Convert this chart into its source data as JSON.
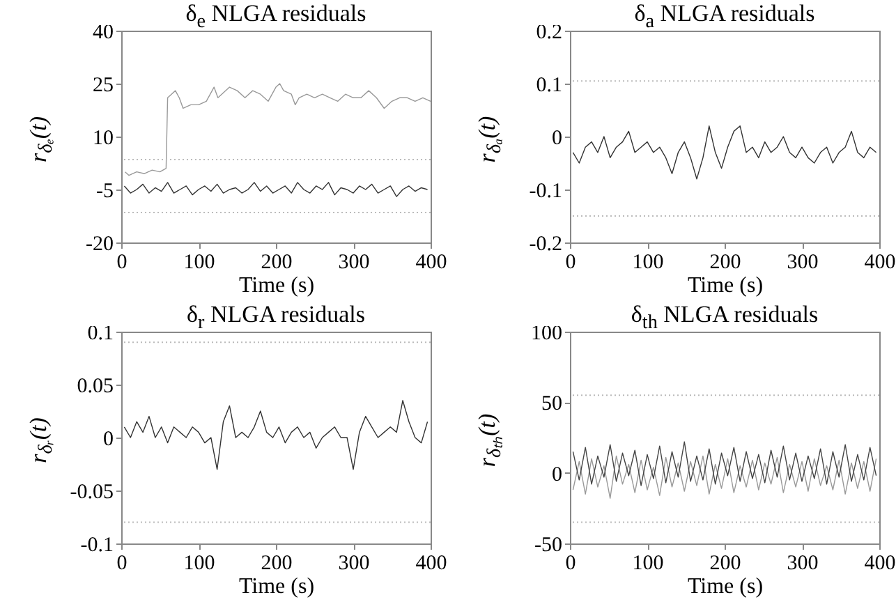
{
  "chart_data": [
    {
      "type": "line",
      "title": "δ$_{e}$  NLGA residuals",
      "xlabel": "Time (s)",
      "ylabel": "r$_{δₑ}$(t)",
      "xlim": [
        0,
        400
      ],
      "xticks": [
        0,
        100,
        200,
        300,
        400
      ],
      "ylim": [
        -20,
        40
      ],
      "yticks": [
        -20,
        -5,
        10,
        25,
        40
      ],
      "grid": false,
      "series": [
        {
          "color": "#999999",
          "x": [
            5,
            10,
            20,
            30,
            40,
            50,
            58,
            60,
            65,
            70,
            75,
            80,
            90,
            100,
            110,
            120,
            125,
            130,
            140,
            150,
            160,
            170,
            180,
            190,
            200,
            205,
            210,
            220,
            225,
            230,
            240,
            250,
            260,
            270,
            280,
            290,
            300,
            310,
            320,
            330,
            340,
            350,
            360,
            370,
            380,
            390,
            400
          ],
          "values": [
            0,
            -1,
            0,
            -0.5,
            0.5,
            0,
            1,
            21,
            22,
            23,
            21,
            18,
            19,
            19,
            20,
            24,
            21,
            22,
            24,
            23,
            21,
            23,
            22,
            20,
            24,
            25,
            23,
            22,
            19,
            21,
            22,
            21,
            22,
            21,
            20,
            22,
            21,
            21,
            23,
            21,
            18,
            20,
            21,
            21,
            20,
            21,
            20
          ]
        },
        {
          "color": "#333333",
          "x": [
            4,
            12,
            20,
            28,
            36,
            44,
            52,
            60,
            68,
            76,
            84,
            92,
            100,
            108,
            116,
            124,
            132,
            140,
            148,
            156,
            164,
            172,
            180,
            188,
            196,
            204,
            212,
            220,
            228,
            236,
            244,
            252,
            260,
            268,
            276,
            284,
            292,
            300,
            308,
            316,
            324,
            332,
            340,
            348,
            356,
            364,
            372,
            380,
            388,
            396
          ],
          "values": [
            -4,
            -6,
            -5,
            -3.5,
            -6,
            -4.5,
            -5.5,
            -3,
            -6,
            -5,
            -4,
            -6.5,
            -5,
            -4,
            -5.5,
            -3.5,
            -6,
            -5,
            -4.5,
            -6,
            -5,
            -3,
            -5.5,
            -4,
            -6,
            -5,
            -4,
            -6,
            -3,
            -5,
            -6,
            -4,
            -5,
            -3,
            -6.5,
            -4.5,
            -5,
            -6,
            -4,
            -5,
            -3.5,
            -6,
            -5,
            -4,
            -7,
            -5,
            -4,
            -5.5,
            -4.5,
            -5
          ]
        }
      ],
      "ref_lines": [
        {
          "axis": "y",
          "value": 3.5,
          "color": "#bbbbbb",
          "line_style": "dotted"
        },
        {
          "axis": "y",
          "value": -11.5,
          "color": "#bbbbbb",
          "line_style": "dotted"
        }
      ]
    },
    {
      "type": "line",
      "title": "δ$_{a}$  NLGA residuals",
      "xlabel": "Time (s)",
      "ylabel": "r$_{δₐ}$(t)",
      "xlim": [
        0,
        400
      ],
      "xticks": [
        0,
        100,
        200,
        300,
        400
      ],
      "ylim": [
        -0.2,
        0.2
      ],
      "yticks": [
        -0.2,
        -0.1,
        0,
        0.1,
        0.2
      ],
      "grid": false,
      "series": [
        {
          "color": "#333333",
          "x": [
            4,
            12,
            20,
            28,
            36,
            44,
            52,
            60,
            68,
            76,
            84,
            92,
            100,
            108,
            116,
            124,
            132,
            140,
            148,
            156,
            164,
            172,
            180,
            188,
            196,
            204,
            212,
            220,
            228,
            236,
            244,
            252,
            260,
            268,
            276,
            284,
            292,
            300,
            308,
            316,
            324,
            332,
            340,
            348,
            356,
            364,
            372,
            380,
            388,
            396
          ],
          "values": [
            -0.03,
            -0.05,
            -0.02,
            -0.01,
            -0.03,
            0.0,
            -0.04,
            -0.02,
            -0.01,
            0.01,
            -0.03,
            -0.02,
            -0.01,
            -0.03,
            -0.02,
            -0.04,
            -0.07,
            -0.03,
            -0.01,
            -0.04,
            -0.08,
            -0.04,
            0.02,
            -0.03,
            -0.06,
            -0.02,
            0.01,
            0.02,
            -0.03,
            -0.02,
            -0.04,
            -0.01,
            -0.03,
            -0.02,
            0.0,
            -0.03,
            -0.04,
            -0.02,
            -0.04,
            -0.05,
            -0.03,
            -0.02,
            -0.05,
            -0.03,
            -0.02,
            0.01,
            -0.03,
            -0.04,
            -0.02,
            -0.03
          ]
        }
      ],
      "ref_lines": [
        {
          "axis": "y",
          "value": 0.105,
          "color": "#bbbbbb",
          "line_style": "dotted"
        },
        {
          "axis": "y",
          "value": -0.15,
          "color": "#bbbbbb",
          "line_style": "dotted"
        }
      ]
    },
    {
      "type": "line",
      "title": "δ$_{r}$ NLGA residuals",
      "xlabel": "Time (s)",
      "ylabel": "r$_{δᵣ}$(t)",
      "xlim": [
        0,
        400
      ],
      "xticks": [
        0,
        100,
        200,
        300,
        400
      ],
      "ylim": [
        -0.1,
        0.1
      ],
      "yticks": [
        -0.1,
        -0.05,
        0,
        0.05,
        0.1
      ],
      "grid": false,
      "series": [
        {
          "color": "#333333",
          "x": [
            4,
            12,
            20,
            28,
            36,
            44,
            52,
            60,
            68,
            76,
            84,
            92,
            100,
            108,
            116,
            124,
            132,
            140,
            148,
            156,
            164,
            172,
            180,
            188,
            196,
            204,
            212,
            220,
            228,
            236,
            244,
            252,
            260,
            268,
            276,
            284,
            292,
            300,
            308,
            316,
            324,
            332,
            340,
            348,
            356,
            364,
            372,
            380,
            388,
            396
          ],
          "values": [
            0.01,
            0.0,
            0.015,
            0.005,
            0.02,
            0.0,
            0.01,
            -0.005,
            0.01,
            0.005,
            0.0,
            0.01,
            0.005,
            -0.005,
            0.0,
            -0.03,
            0.015,
            0.03,
            0.0,
            0.005,
            0.0,
            0.01,
            0.025,
            0.005,
            0.0,
            0.01,
            -0.005,
            0.005,
            0.01,
            0.0,
            0.005,
            -0.01,
            0.0,
            0.005,
            0.01,
            0.0,
            0.0,
            -0.03,
            0.005,
            0.02,
            0.01,
            0.0,
            0.005,
            0.01,
            0.005,
            0.035,
            0.015,
            0.0,
            -0.005,
            0.015
          ]
        }
      ],
      "ref_lines": [
        {
          "axis": "y",
          "value": 0.09,
          "color": "#bbbbbb",
          "line_style": "dotted"
        },
        {
          "axis": "y",
          "value": -0.08,
          "color": "#bbbbbb",
          "line_style": "dotted"
        }
      ]
    },
    {
      "type": "line",
      "title": "δ$_{th}$ NLGA residuals",
      "xlabel": "Time (s)",
      "ylabel": "r$_{δₜₕ}$(t)",
      "xlim": [
        0,
        400
      ],
      "xticks": [
        0,
        100,
        200,
        300,
        400
      ],
      "ylim": [
        -50,
        100
      ],
      "yticks": [
        -50,
        0,
        50,
        100
      ],
      "grid": false,
      "series": [
        {
          "color": "#999999",
          "x": [
            4,
            12,
            20,
            28,
            36,
            44,
            52,
            60,
            68,
            76,
            84,
            92,
            100,
            108,
            116,
            124,
            132,
            140,
            148,
            156,
            164,
            172,
            180,
            188,
            196,
            204,
            212,
            220,
            228,
            236,
            244,
            252,
            260,
            268,
            276,
            284,
            292,
            300,
            308,
            316,
            324,
            332,
            340,
            348,
            356,
            364,
            372,
            380,
            388,
            396
          ],
          "values": [
            -12,
            8,
            -15,
            10,
            -10,
            5,
            -18,
            12,
            -8,
            6,
            -14,
            9,
            -12,
            4,
            -16,
            11,
            -10,
            7,
            -13,
            8,
            -9,
            12,
            -15,
            6,
            -11,
            10,
            -14,
            5,
            -10,
            9,
            -12,
            7,
            -8,
            11,
            -14,
            6,
            -10,
            8,
            -13,
            10,
            -9,
            5,
            -12,
            9,
            -15,
            7,
            -11,
            8,
            -13,
            10
          ]
        },
        {
          "color": "#444444",
          "x": [
            4,
            12,
            20,
            28,
            36,
            44,
            52,
            60,
            68,
            76,
            84,
            92,
            100,
            108,
            116,
            124,
            132,
            140,
            148,
            156,
            164,
            172,
            180,
            188,
            196,
            204,
            212,
            220,
            228,
            236,
            244,
            252,
            260,
            268,
            276,
            284,
            292,
            300,
            308,
            316,
            324,
            332,
            340,
            348,
            356,
            364,
            372,
            380,
            388,
            396
          ],
          "values": [
            15,
            -5,
            18,
            -8,
            12,
            -3,
            20,
            -6,
            14,
            -2,
            16,
            -9,
            13,
            -4,
            19,
            -7,
            15,
            -3,
            22,
            -6,
            12,
            -5,
            17,
            -8,
            14,
            -2,
            18,
            -6,
            15,
            -4,
            13,
            -7,
            16,
            -3,
            19,
            -5,
            14,
            -6,
            12,
            -4,
            17,
            -8,
            15,
            -3,
            20,
            -6,
            13,
            -5,
            18,
            -2
          ]
        }
      ],
      "ref_lines": [
        {
          "axis": "y",
          "value": 55,
          "color": "#bbbbbb",
          "line_style": "dotted"
        },
        {
          "axis": "y",
          "value": -35,
          "color": "#bbbbbb",
          "line_style": "dotted"
        }
      ]
    }
  ]
}
